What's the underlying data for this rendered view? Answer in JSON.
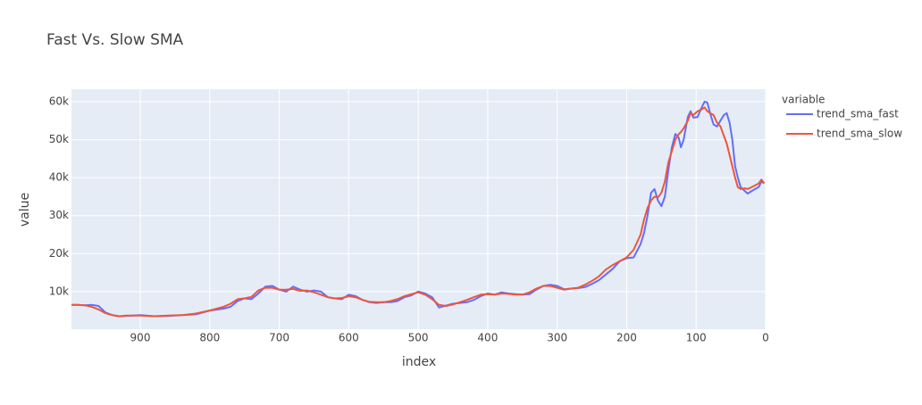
{
  "chart_data": {
    "type": "line",
    "title": "Fast Vs. Slow SMA",
    "x_label": "index",
    "y_label": "value",
    "legend_title": "variable",
    "x": [
      999,
      990,
      980,
      970,
      960,
      950,
      940,
      930,
      920,
      900,
      880,
      860,
      840,
      820,
      800,
      780,
      770,
      760,
      750,
      740,
      730,
      720,
      710,
      700,
      690,
      680,
      670,
      660,
      650,
      640,
      630,
      620,
      610,
      600,
      590,
      580,
      570,
      560,
      550,
      540,
      530,
      520,
      510,
      500,
      490,
      480,
      470,
      460,
      450,
      440,
      430,
      420,
      410,
      400,
      390,
      380,
      370,
      360,
      350,
      340,
      330,
      320,
      310,
      300,
      290,
      280,
      270,
      260,
      250,
      240,
      230,
      220,
      210,
      200,
      190,
      180,
      175,
      170,
      165,
      160,
      155,
      150,
      145,
      140,
      135,
      130,
      125,
      122,
      118,
      112,
      108,
      104,
      98,
      92,
      88,
      84,
      80,
      75,
      70,
      65,
      60,
      56,
      52,
      48,
      44,
      40,
      36,
      30,
      26,
      20,
      15,
      10,
      6,
      2
    ],
    "series": [
      {
        "name": "trend_sma_fast",
        "color": "#636efa",
        "values": [
          6500,
          6500,
          6400,
          6500,
          6200,
          4500,
          3800,
          3500,
          3600,
          3800,
          3500,
          3600,
          3800,
          4000,
          5000,
          5500,
          6000,
          7500,
          8200,
          8000,
          9500,
          11300,
          11500,
          10500,
          10000,
          11300,
          10500,
          10000,
          10300,
          10000,
          8500,
          8200,
          8000,
          9200,
          8800,
          7800,
          7200,
          7000,
          7200,
          7200,
          7500,
          8500,
          9000,
          10000,
          9500,
          8500,
          5800,
          6300,
          6800,
          7000,
          7200,
          7800,
          8800,
          9500,
          9200,
          9800,
          9500,
          9300,
          9200,
          9300,
          10500,
          11500,
          11800,
          11500,
          10600,
          10800,
          10900,
          11200,
          12000,
          13000,
          14500,
          16000,
          18000,
          18800,
          19000,
          22500,
          25500,
          30000,
          36000,
          37000,
          34000,
          32500,
          35000,
          42000,
          48000,
          51500,
          50500,
          48000,
          50000,
          56000,
          57500,
          55800,
          56000,
          58500,
          60000,
          59800,
          57000,
          54000,
          53500,
          55000,
          56500,
          57000,
          54500,
          50000,
          43000,
          40000,
          37500,
          36500,
          35800,
          36500,
          37000,
          37500,
          39000,
          38500
        ]
      },
      {
        "name": "trend_sma_slow",
        "color": "#ef553b",
        "values": [
          6500,
          6500,
          6400,
          6000,
          5300,
          4300,
          3800,
          3500,
          3700,
          3700,
          3500,
          3700,
          3800,
          4200,
          5000,
          6000,
          6800,
          8000,
          8200,
          8600,
          10300,
          11000,
          11000,
          10500,
          10500,
          10700,
          10200,
          10300,
          9800,
          9200,
          8500,
          8200,
          8300,
          8800,
          8500,
          7800,
          7300,
          7200,
          7200,
          7500,
          8000,
          8800,
          9300,
          9800,
          9200,
          8000,
          6500,
          6200,
          6600,
          7200,
          7800,
          8500,
          9200,
          9300,
          9200,
          9500,
          9400,
          9200,
          9200,
          9800,
          10800,
          11500,
          11500,
          11000,
          10500,
          10800,
          11000,
          11800,
          12800,
          14000,
          15800,
          17000,
          18000,
          19000,
          21000,
          25000,
          29000,
          32000,
          34000,
          35000,
          34800,
          36000,
          39000,
          44000,
          47000,
          50000,
          51500,
          52000,
          53000,
          55000,
          57000,
          56500,
          57500,
          58000,
          58500,
          57500,
          57000,
          56500,
          54500,
          53500,
          51000,
          49000,
          46000,
          43000,
          40000,
          37500,
          37000,
          37200,
          37000,
          37500,
          38000,
          38500,
          39500,
          38500
        ]
      }
    ],
    "xlim": [
      999,
      0
    ],
    "xticks": [
      900,
      800,
      700,
      600,
      500,
      400,
      300,
      200,
      100,
      0
    ],
    "ylim": [
      100,
      63300
    ],
    "yticks": [
      {
        "value": 10000,
        "label": "10k"
      },
      {
        "value": 20000,
        "label": "20k"
      },
      {
        "value": 30000,
        "label": "30k"
      },
      {
        "value": 40000,
        "label": "40k"
      },
      {
        "value": 50000,
        "label": "50k"
      },
      {
        "value": 60000,
        "label": "60k"
      }
    ],
    "grid": true
  }
}
